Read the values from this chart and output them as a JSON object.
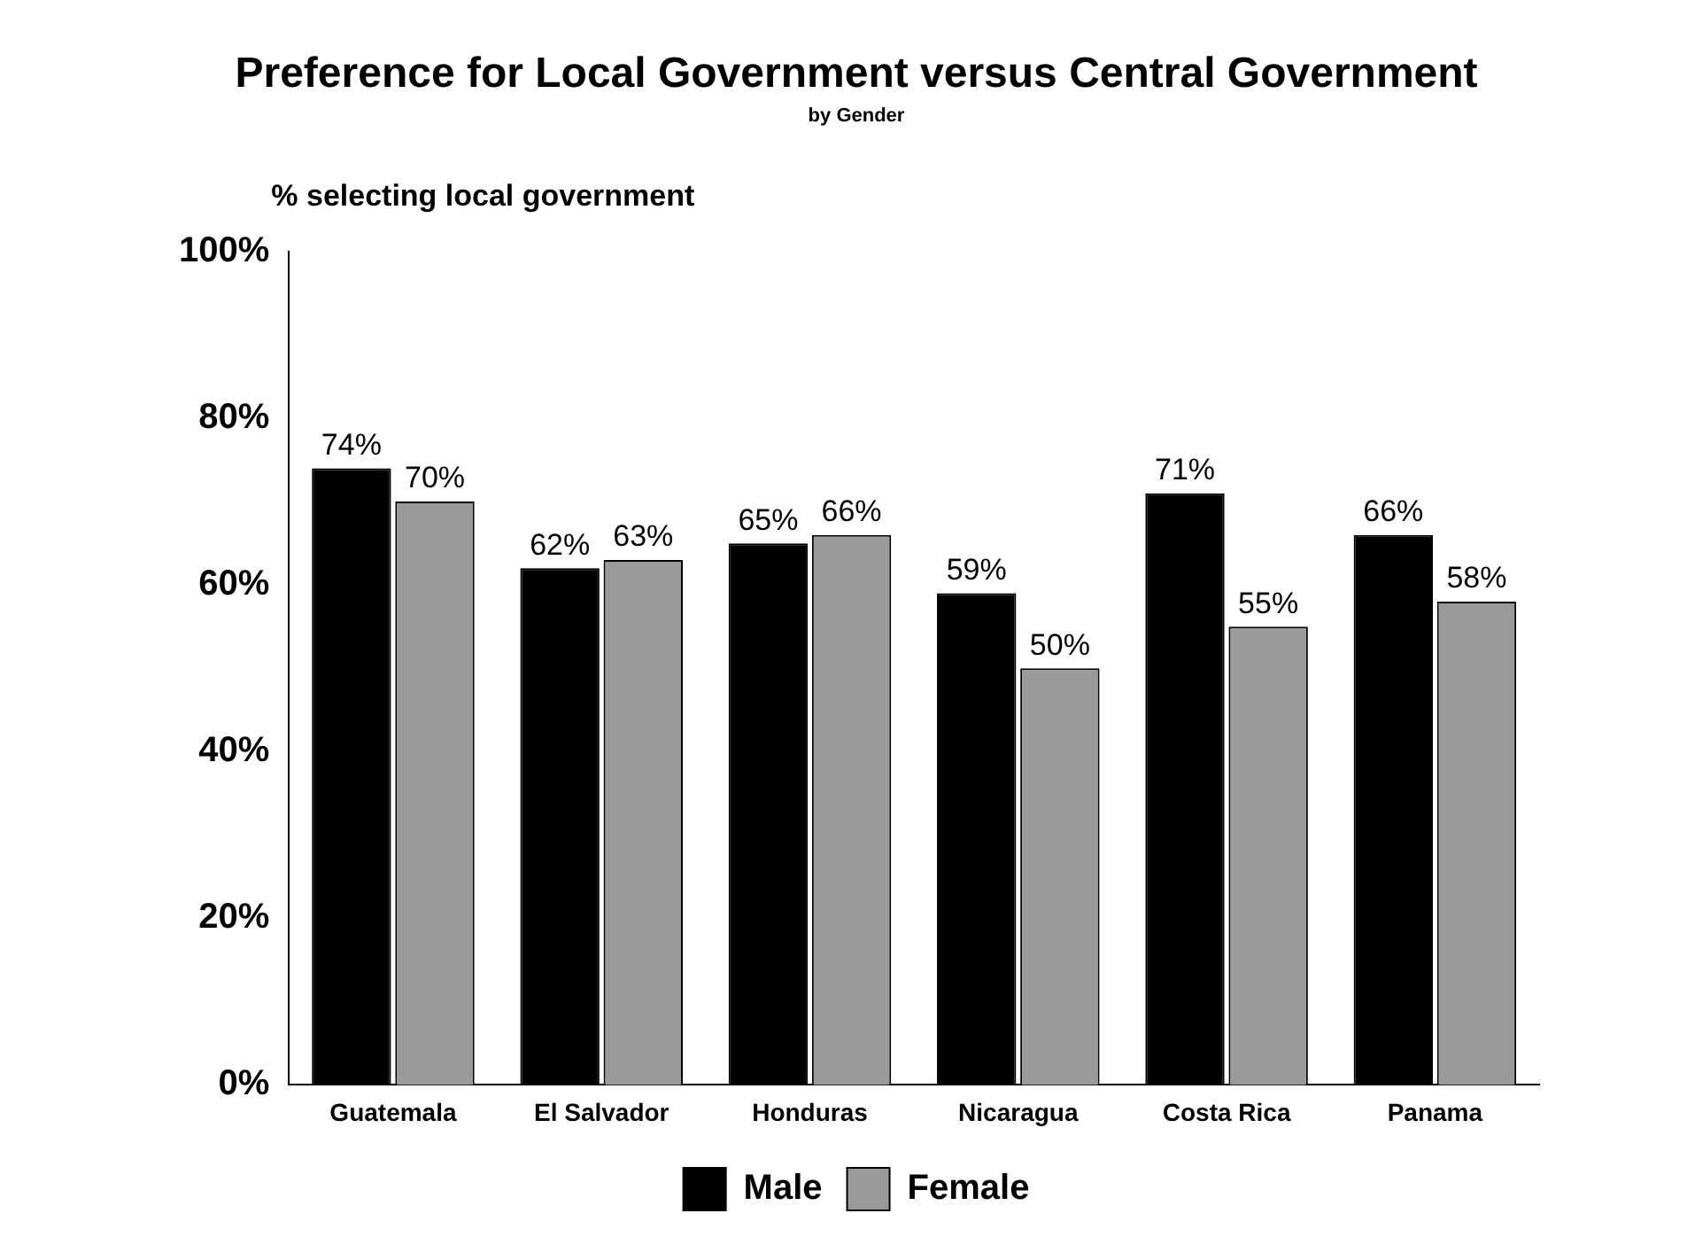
{
  "chart_data": {
    "type": "bar",
    "title": "Preference for Local Government versus Central Government",
    "subtitle": "by Gender",
    "ylabel": "% selecting local government",
    "categories": [
      "Guatemala",
      "El Salvador",
      "Honduras",
      "Nicaragua",
      "Costa Rica",
      "Panama"
    ],
    "series": [
      {
        "name": "Male",
        "color": "#000000",
        "values": [
          74,
          62,
          65,
          59,
          71,
          66
        ],
        "value_labels": [
          "74%",
          "62%",
          "65%",
          "59%",
          "71%",
          "66%"
        ]
      },
      {
        "name": "Female",
        "color": "#9a9a9a",
        "values": [
          70,
          63,
          66,
          50,
          55,
          58
        ],
        "value_labels": [
          "70%",
          "63%",
          "66%",
          "50%",
          "55%",
          "58%"
        ]
      }
    ],
    "ylim": [
      0,
      100
    ],
    "yticks": [
      {
        "value": 0,
        "label": "0%"
      },
      {
        "value": 20,
        "label": "20%"
      },
      {
        "value": 40,
        "label": "40%"
      },
      {
        "value": 60,
        "label": "60%"
      },
      {
        "value": 80,
        "label": "80%"
      },
      {
        "value": 100,
        "label": "100%"
      }
    ],
    "grid": false,
    "legend": "bottom"
  }
}
